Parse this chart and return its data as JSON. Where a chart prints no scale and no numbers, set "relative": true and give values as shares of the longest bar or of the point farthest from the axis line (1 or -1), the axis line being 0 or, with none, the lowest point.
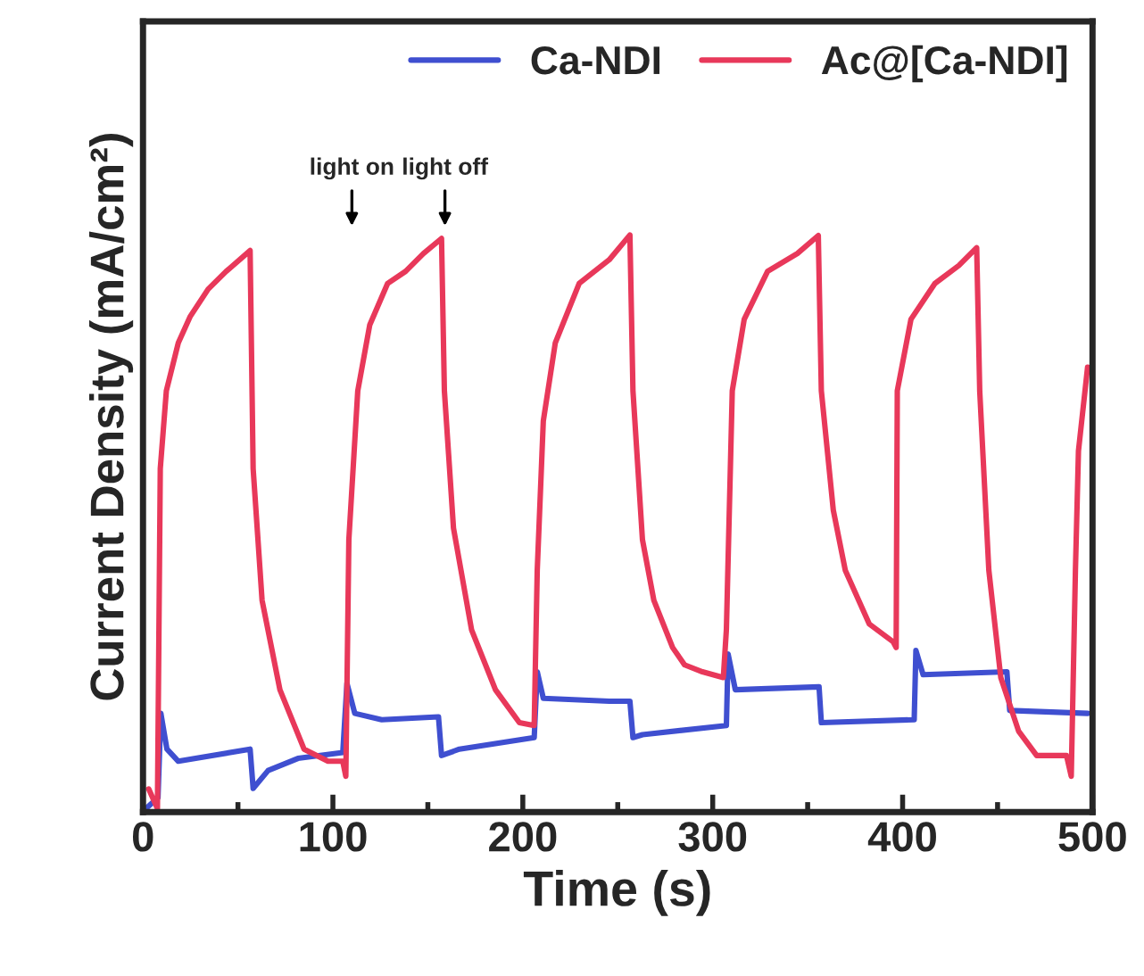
{
  "chart_data": {
    "type": "line",
    "relative": true,
    "xlabel": "Time (s)",
    "ylabel": "Current Density (mA/cm²)",
    "xlim": [
      0,
      500
    ],
    "xticks": [
      0,
      100,
      200,
      300,
      400,
      500
    ],
    "legend": "top right",
    "grid": false,
    "marker": "none",
    "line_style": "solid",
    "annotations": [
      "light on",
      "light off"
    ],
    "series": [
      {
        "name": "Ca-NDI",
        "color": "#3f4fd0",
        "x": [
          1.6,
          7.9,
          9.4,
          12.6,
          18.6,
          56.4,
          58,
          65.9,
          81.6,
          105.2,
          107.4,
          111.5,
          125.7,
          155.6,
          157.2,
          166.6,
          206,
          207.6,
          210.8,
          245.5,
          256.4,
          258,
          263,
          307.2,
          308.1,
          311.9,
          356,
          357.2,
          406.1,
          407,
          410.8,
          454.9,
          456.4,
          497.4
        ],
        "values": [
          0.006,
          0.025,
          0.171,
          0.109,
          0.088,
          0.109,
          0.041,
          0.072,
          0.093,
          0.103,
          0.223,
          0.171,
          0.16,
          0.165,
          0.098,
          0.109,
          0.129,
          0.243,
          0.197,
          0.192,
          0.192,
          0.129,
          0.134,
          0.15,
          0.274,
          0.212,
          0.217,
          0.155,
          0.16,
          0.28,
          0.238,
          0.243,
          0.176,
          0.171
        ]
      },
      {
        "name": "Ac@[Ca-NDI]",
        "color": "#e8385a",
        "x": [
          3,
          7.6,
          9.1,
          12.3,
          18.6,
          24.9,
          34.3,
          43.8,
          56.4,
          58,
          62.7,
          72.1,
          84.8,
          97.4,
          105.2,
          106.8,
          108.4,
          113.1,
          119.4,
          128.8,
          138.3,
          147.7,
          157.2,
          158.7,
          163.5,
          173,
          185.6,
          198.2,
          206,
          207.6,
          210.8,
          217.1,
          229.7,
          245.5,
          256.4,
          258,
          263,
          269,
          278.9,
          285.2,
          294.6,
          305.6,
          307.2,
          310.3,
          316.6,
          328.9,
          344.6,
          355.6,
          357.2,
          363.5,
          369.8,
          382.4,
          395,
          396.6,
          397.2,
          404.4,
          417,
          429.6,
          439,
          440.6,
          445.4,
          451.7,
          461.1,
          470.6,
          486.3,
          488.8,
          491,
          492.6,
          497.4
        ],
        "values": [
          0.04,
          0.006,
          0.595,
          0.73,
          0.813,
          0.859,
          0.906,
          0.937,
          0.973,
          0.595,
          0.367,
          0.212,
          0.109,
          0.088,
          0.088,
          0.062,
          0.472,
          0.73,
          0.844,
          0.916,
          0.937,
          0.968,
          0.994,
          0.73,
          0.492,
          0.316,
          0.212,
          0.155,
          0.15,
          0.419,
          0.678,
          0.813,
          0.916,
          0.957,
          1.0,
          0.73,
          0.472,
          0.367,
          0.285,
          0.255,
          0.243,
          0.233,
          0.316,
          0.73,
          0.854,
          0.937,
          0.968,
          0.999,
          0.73,
          0.523,
          0.419,
          0.326,
          0.295,
          0.285,
          0.73,
          0.854,
          0.916,
          0.947,
          0.978,
          0.73,
          0.419,
          0.233,
          0.14,
          0.098,
          0.098,
          0.062,
          0.419,
          0.626,
          0.771
        ]
      }
    ]
  }
}
